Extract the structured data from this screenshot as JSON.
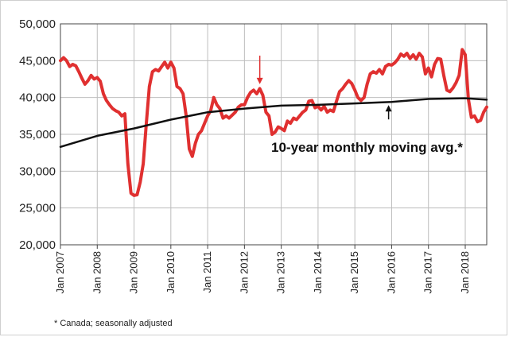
{
  "chart_data": {
    "type": "line",
    "title": "",
    "xlabel": "",
    "ylabel": "",
    "x_range": [
      "2007-01",
      "2018-08"
    ],
    "ylim": [
      20000,
      50000
    ],
    "y_ticks": [
      "20,000",
      "25,000",
      "30,000",
      "35,000",
      "40,000",
      "45,000",
      "50,000"
    ],
    "y_tick_values": [
      20000,
      25000,
      30000,
      35000,
      40000,
      45000,
      50000
    ],
    "x_ticks": [
      "Jan 2007",
      "Jan 2008",
      "Jan 2009",
      "Jan 2010",
      "Jan 2011",
      "Jan 2012",
      "Jan 2013",
      "Jan 2014",
      "Jan 2015",
      "Jan 2016",
      "Jan 2017",
      "Jan 2018"
    ],
    "x_tick_values": [
      "2007-01",
      "2008-01",
      "2009-01",
      "2010-01",
      "2011-01",
      "2012-01",
      "2013-01",
      "2014-01",
      "2015-01",
      "2016-01",
      "2017-01",
      "2018-01"
    ],
    "grid": true,
    "series": [
      {
        "name": "",
        "color": "#e03030",
        "points": [
          [
            "2007-01",
            45000
          ],
          [
            "2007-02",
            45400
          ],
          [
            "2007-03",
            45000
          ],
          [
            "2007-04",
            44200
          ],
          [
            "2007-05",
            44500
          ],
          [
            "2007-06",
            44300
          ],
          [
            "2007-07",
            43500
          ],
          [
            "2007-08",
            42600
          ],
          [
            "2007-09",
            41800
          ],
          [
            "2007-10",
            42300
          ],
          [
            "2007-11",
            43000
          ],
          [
            "2007-12",
            42500
          ],
          [
            "2008-01",
            42700
          ],
          [
            "2008-02",
            42200
          ],
          [
            "2008-03",
            40500
          ],
          [
            "2008-04",
            39600
          ],
          [
            "2008-05",
            39000
          ],
          [
            "2008-06",
            38500
          ],
          [
            "2008-07",
            38200
          ],
          [
            "2008-08",
            38000
          ],
          [
            "2008-09",
            37500
          ],
          [
            "2008-10",
            37800
          ],
          [
            "2008-11",
            31000
          ],
          [
            "2008-12",
            27000
          ],
          [
            "2009-01",
            26700
          ],
          [
            "2009-02",
            26800
          ],
          [
            "2009-03",
            28500
          ],
          [
            "2009-04",
            31000
          ],
          [
            "2009-05",
            36500
          ],
          [
            "2009-06",
            41500
          ],
          [
            "2009-07",
            43500
          ],
          [
            "2009-08",
            43800
          ],
          [
            "2009-09",
            43600
          ],
          [
            "2009-10",
            44200
          ],
          [
            "2009-11",
            44800
          ],
          [
            "2009-12",
            44000
          ],
          [
            "2010-01",
            44800
          ],
          [
            "2010-02",
            44000
          ],
          [
            "2010-03",
            41500
          ],
          [
            "2010-04",
            41200
          ],
          [
            "2010-05",
            40500
          ],
          [
            "2010-06",
            37500
          ],
          [
            "2010-07",
            33000
          ],
          [
            "2010-08",
            32000
          ],
          [
            "2010-09",
            33800
          ],
          [
            "2010-10",
            35000
          ],
          [
            "2010-11",
            35500
          ],
          [
            "2010-12",
            36500
          ],
          [
            "2011-01",
            37500
          ],
          [
            "2011-02",
            38200
          ],
          [
            "2011-03",
            40000
          ],
          [
            "2011-04",
            39000
          ],
          [
            "2011-05",
            38500
          ],
          [
            "2011-06",
            37200
          ],
          [
            "2011-07",
            37500
          ],
          [
            "2011-08",
            37200
          ],
          [
            "2011-09",
            37600
          ],
          [
            "2011-10",
            38000
          ],
          [
            "2011-11",
            38700
          ],
          [
            "2011-12",
            39000
          ],
          [
            "2012-01",
            39000
          ],
          [
            "2012-02",
            40000
          ],
          [
            "2012-03",
            40700
          ],
          [
            "2012-04",
            41000
          ],
          [
            "2012-05",
            40500
          ],
          [
            "2012-06",
            41200
          ],
          [
            "2012-07",
            40300
          ],
          [
            "2012-08",
            38000
          ],
          [
            "2012-09",
            37500
          ],
          [
            "2012-10",
            35000
          ],
          [
            "2012-11",
            35300
          ],
          [
            "2012-12",
            36000
          ],
          [
            "2013-01",
            35800
          ],
          [
            "2013-02",
            35500
          ],
          [
            "2013-03",
            36800
          ],
          [
            "2013-04",
            36500
          ],
          [
            "2013-05",
            37200
          ],
          [
            "2013-06",
            37000
          ],
          [
            "2013-07",
            37500
          ],
          [
            "2013-08",
            38000
          ],
          [
            "2013-09",
            38300
          ],
          [
            "2013-10",
            39500
          ],
          [
            "2013-11",
            39600
          ],
          [
            "2013-12",
            38600
          ],
          [
            "2014-01",
            38800
          ],
          [
            "2014-02",
            38300
          ],
          [
            "2014-03",
            38800
          ],
          [
            "2014-04",
            38000
          ],
          [
            "2014-05",
            38300
          ],
          [
            "2014-06",
            38100
          ],
          [
            "2014-07",
            39500
          ],
          [
            "2014-08",
            40800
          ],
          [
            "2014-09",
            41200
          ],
          [
            "2014-10",
            41800
          ],
          [
            "2014-11",
            42300
          ],
          [
            "2014-12",
            41900
          ],
          [
            "2015-01",
            41000
          ],
          [
            "2015-02",
            40000
          ],
          [
            "2015-03",
            39600
          ],
          [
            "2015-04",
            40000
          ],
          [
            "2015-05",
            41800
          ],
          [
            "2015-06",
            43200
          ],
          [
            "2015-07",
            43500
          ],
          [
            "2015-08",
            43300
          ],
          [
            "2015-09",
            43800
          ],
          [
            "2015-10",
            43200
          ],
          [
            "2015-11",
            44200
          ],
          [
            "2015-12",
            44500
          ],
          [
            "2016-01",
            44400
          ],
          [
            "2016-02",
            44700
          ],
          [
            "2016-03",
            45200
          ],
          [
            "2016-04",
            45900
          ],
          [
            "2016-05",
            45600
          ],
          [
            "2016-06",
            46000
          ],
          [
            "2016-07",
            45300
          ],
          [
            "2016-08",
            45800
          ],
          [
            "2016-09",
            45200
          ],
          [
            "2016-10",
            46000
          ],
          [
            "2016-11",
            45500
          ],
          [
            "2016-12",
            43200
          ],
          [
            "2017-01",
            44000
          ],
          [
            "2017-02",
            42800
          ],
          [
            "2017-03",
            44500
          ],
          [
            "2017-04",
            45300
          ],
          [
            "2017-05",
            45200
          ],
          [
            "2017-06",
            43000
          ],
          [
            "2017-07",
            41000
          ],
          [
            "2017-08",
            40800
          ],
          [
            "2017-09",
            41300
          ],
          [
            "2017-10",
            42000
          ],
          [
            "2017-11",
            43000
          ],
          [
            "2017-12",
            46500
          ],
          [
            "2018-01",
            45800
          ],
          [
            "2018-02",
            39800
          ],
          [
            "2018-03",
            37300
          ],
          [
            "2018-04",
            37500
          ],
          [
            "2018-05",
            36700
          ],
          [
            "2018-06",
            36900
          ],
          [
            "2018-07",
            38000
          ],
          [
            "2018-08",
            38700
          ]
        ]
      },
      {
        "name": "10-year monthly moving avg.*",
        "color": "#111111",
        "points": [
          [
            "2007-01",
            33300
          ],
          [
            "2008-01",
            34800
          ],
          [
            "2009-01",
            35800
          ],
          [
            "2010-01",
            37000
          ],
          [
            "2011-01",
            38000
          ],
          [
            "2012-01",
            38500
          ],
          [
            "2013-01",
            38900
          ],
          [
            "2014-01",
            39000
          ],
          [
            "2015-01",
            39200
          ],
          [
            "2016-01",
            39400
          ],
          [
            "2017-01",
            39800
          ],
          [
            "2018-01",
            39900
          ],
          [
            "2018-08",
            39700
          ]
        ]
      }
    ],
    "annotations": [
      {
        "text": "10-year monthly moving avg.*",
        "arrow_at": [
          "2015-12",
          39400
        ],
        "color": "#111111"
      },
      {
        "text": "",
        "arrow_at": [
          "2012-06",
          41600
        ],
        "color": "#e03030"
      }
    ],
    "footnote": "* Canada; seasonally adjusted",
    "colors": {
      "actual": "#e03030",
      "average": "#111111",
      "grid": "#bdbdbd",
      "axis": "#444444"
    }
  }
}
